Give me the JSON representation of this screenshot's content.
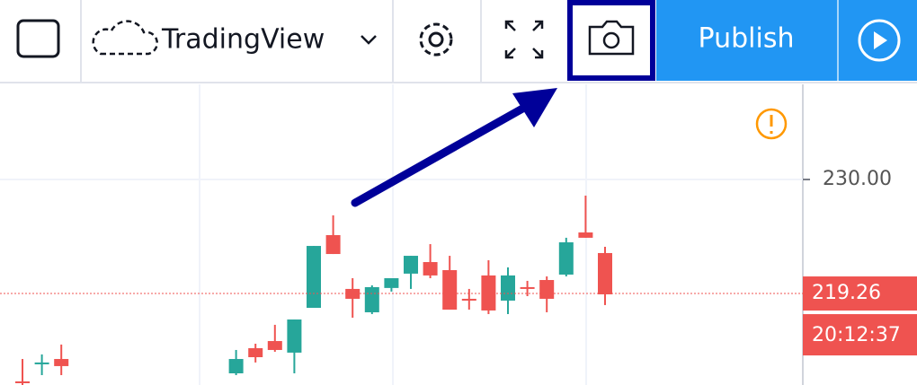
{
  "toolbar": {
    "brand": "TradingView",
    "publish": "Publish"
  },
  "chart_data": {
    "type": "candlestick",
    "up_color": "#26a69a",
    "down_color": "#ef5350",
    "ylim": [
      210.64,
      239.13
    ],
    "yticks": [
      {
        "value": 230,
        "label": "230.00"
      }
    ],
    "grid": true,
    "last_price": 219.26,
    "countdown": "20:12:37",
    "open": [
      210.98,
      212.59,
      213.09,
      null,
      null,
      null,
      null,
      null,
      null,
      null,
      null,
      211.74,
      214.11,
      214.78,
      213.69,
      217.91,
      224.76,
      219.69,
      217.49,
      219.78,
      221.13,
      222.22,
      221.46,
      218.76,
      220.96,
      218.59,
      219.86,
      220.53,
      221.04,
      225.01,
      223.07
    ],
    "high": [
      213.09,
      213.52,
      214.45,
      null,
      null,
      null,
      null,
      null,
      null,
      null,
      null,
      213.94,
      214.53,
      216.31,
      216.81,
      223.74,
      226.62,
      220.7,
      220.03,
      220.7,
      222.81,
      223.91,
      222.81,
      219.69,
      222.39,
      221.72,
      220.45,
      220.87,
      224.51,
      228.48,
      223.66
    ],
    "low": [
      210.64,
      211.57,
      211.57,
      null,
      null,
      null,
      null,
      null,
      null,
      null,
      null,
      211.57,
      212.76,
      213.77,
      211.74,
      217.91,
      222.98,
      216.98,
      217.32,
      219.44,
      219.69,
      220.7,
      217.74,
      217.74,
      217.32,
      217.32,
      219.01,
      217.49,
      220.87,
      224.51,
      218.17
    ],
    "close": [
      210.81,
      212.76,
      212.42,
      null,
      null,
      null,
      null,
      null,
      null,
      null,
      null,
      213.09,
      213.26,
      213.94,
      216.81,
      223.74,
      222.98,
      218.76,
      219.86,
      220.7,
      222.81,
      220.96,
      217.74,
      218.59,
      217.66,
      220.96,
      219.69,
      218.76,
      224.08,
      224.51,
      219.18
    ]
  }
}
